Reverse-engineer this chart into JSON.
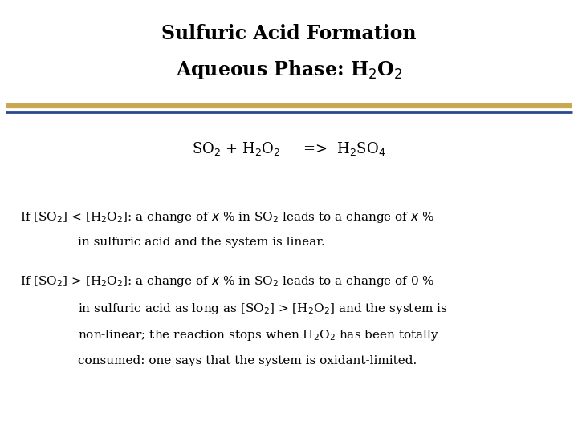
{
  "title_line1": "Sulfuric Acid Formation",
  "title_line2": "Aqueous Phase: H$_2$O$_2$",
  "bg_color": "#ffffff",
  "title_color": "#000000",
  "title_fontsize": 17,
  "separator_color_gold": "#c8a850",
  "separator_color_navy": "#2a4a8a",
  "reaction": "SO$_2$ + H$_2$O$_2$     =>  H$_2$SO$_4$",
  "reaction_fontsize": 13,
  "text_fontsize": 11,
  "body_color": "#000000",
  "para1_line1": "If [SO$_2$] < [H$_2$O$_2$]: a change of $x$ % in SO$_2$ leads to a change of $x$ %",
  "para1_line2": "in sulfuric acid and the system is linear.",
  "para2_line1": "If [SO$_2$] > [H$_2$O$_2$]: a change of $x$ % in SO$_2$ leads to a change of 0 %",
  "para2_line2": "in sulfuric acid as long as [SO$_2$] > [H$_2$O$_2$] and the system is",
  "para2_line3": "non-linear; the reaction stops when H$_2$O$_2$ has been totally",
  "para2_line4": "consumed: one says that the system is oxidant-limited."
}
